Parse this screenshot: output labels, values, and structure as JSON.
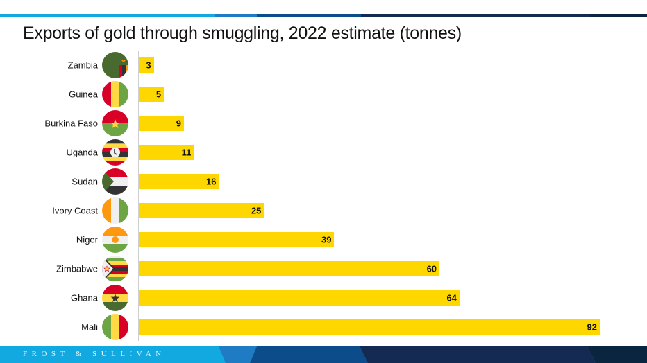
{
  "chart_data": {
    "type": "bar",
    "orientation": "horizontal",
    "title": "Exports of gold through smuggling, 2022 estimate (tonnes)",
    "xlabel": "",
    "ylabel": "",
    "categories": [
      "Zambia",
      "Guinea",
      "Burkina Faso",
      "Uganda",
      "Sudan",
      "Ivory Coast",
      "Niger",
      "Zimbabwe",
      "Ghana",
      "Mali"
    ],
    "values": [
      3,
      5,
      9,
      11,
      16,
      25,
      39,
      60,
      64,
      92
    ],
    "xlim": [
      0,
      92
    ],
    "grid": false,
    "legend": "none",
    "data_labels": true,
    "bar_color": "#FFD700"
  },
  "flags": [
    "zambia-flag-icon",
    "guinea-flag-icon",
    "burkina-faso-flag-icon",
    "uganda-flag-icon",
    "sudan-flag-icon",
    "ivory-coast-flag-icon",
    "niger-flag-icon",
    "zimbabwe-flag-icon",
    "ghana-flag-icon",
    "mali-flag-icon"
  ],
  "footer": {
    "brand": "FROST & SULLIVAN"
  },
  "colors": {
    "accent_light": "#12a9e0",
    "accent_mid": "#0d4c8b",
    "accent_dark": "#152a52"
  }
}
